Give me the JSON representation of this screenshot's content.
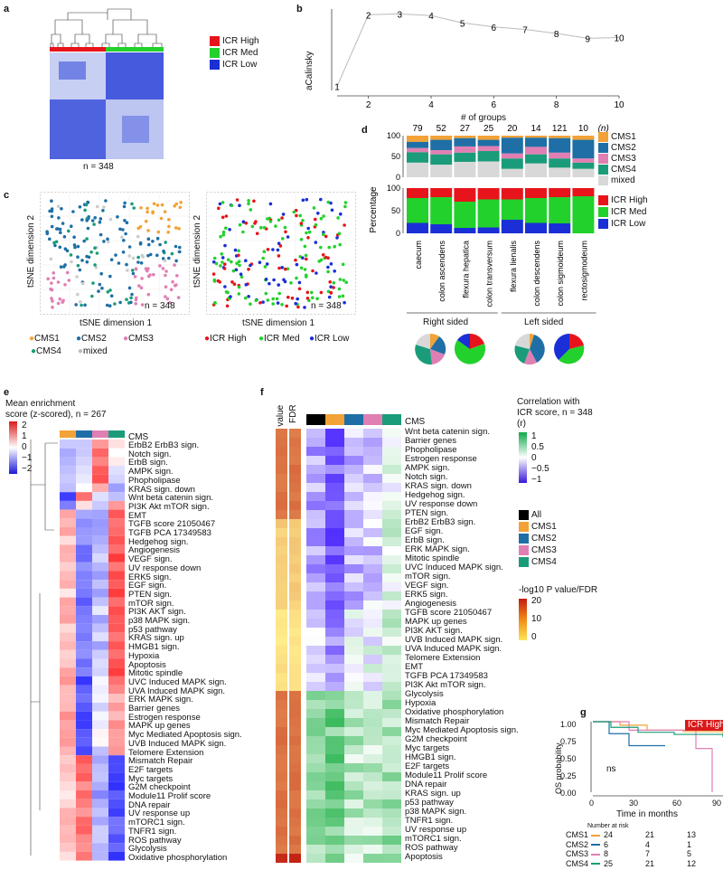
{
  "panels": {
    "a": "a",
    "b": "b",
    "c": "c",
    "d": "d",
    "e": "e",
    "f": "f",
    "g": "g"
  },
  "colors": {
    "icr_high": "#e8141b",
    "icr_med": "#22d12c",
    "icr_low": "#1a2fd6",
    "cms1": "#f2a236",
    "cms2": "#1f6fa6",
    "cms3": "#e07fb3",
    "cms4": "#1a9c7a",
    "mixed": "#d8d8d8"
  },
  "panel_a": {
    "legend": [
      "ICR High",
      "ICR Med",
      "ICR Low"
    ],
    "n_label": "n = 348"
  },
  "panel_b": {
    "chart_data": {
      "type": "line",
      "x": [
        1,
        2,
        3,
        4,
        5,
        6,
        7,
        8,
        9,
        10
      ],
      "y": [
        0.05,
        0.93,
        0.94,
        0.92,
        0.83,
        0.78,
        0.75,
        0.7,
        0.64,
        0.65
      ],
      "point_labels": [
        "1",
        "2",
        "3",
        "4",
        "5",
        "6",
        "7",
        "8",
        "9",
        "10"
      ],
      "xlabel": "# of groups",
      "ylabel": "aCalinsky",
      "xticks": [
        "2",
        "4",
        "6",
        "8",
        "10"
      ],
      "xlim": [
        1,
        10
      ]
    }
  },
  "panel_c": {
    "xlabel": "tSNE dimension 1",
    "ylabel": "tSNE dimension 2",
    "n_label_left": "n = 348",
    "n_label_right": "n = 348",
    "legend_left": [
      "CMS1",
      "CMS2",
      "CMS3",
      "CMS4",
      "mixed"
    ],
    "legend_right": [
      "ICR High",
      "ICR Med",
      "ICR Low"
    ]
  },
  "panel_d": {
    "chart_data": {
      "type": "bar",
      "categories": [
        "caecum",
        "colon ascendens",
        "flexura hepatica",
        "colon transversum",
        "flexura lienalis",
        "colon descendens",
        "colon sigmoideum",
        "rectosigmodeum"
      ],
      "n_values": [
        "79",
        "52",
        "27",
        "25",
        "20",
        "14",
        "121",
        "10"
      ],
      "n_suffix": "(n)",
      "ylabel": "Percentage",
      "yticks": [
        "100",
        "50",
        "0"
      ],
      "cms_series": [
        {
          "name": "CMS1",
          "values": [
            15,
            10,
            6,
            10,
            5,
            5,
            6,
            10
          ]
        },
        {
          "name": "CMS2",
          "values": [
            15,
            25,
            20,
            15,
            38,
            22,
            35,
            45
          ]
        },
        {
          "name": "CMS3",
          "values": [
            10,
            10,
            15,
            12,
            12,
            18,
            14,
            10
          ]
        },
        {
          "name": "CMS4",
          "values": [
            25,
            25,
            22,
            25,
            25,
            22,
            22,
            15
          ]
        },
        {
          "name": "mixed",
          "values": [
            35,
            30,
            37,
            38,
            20,
            33,
            23,
            20
          ]
        }
      ],
      "icr_series": [
        {
          "name": "ICR High",
          "values": [
            22,
            20,
            30,
            25,
            25,
            22,
            20,
            18
          ]
        },
        {
          "name": "ICR Med",
          "values": [
            55,
            60,
            58,
            62,
            45,
            55,
            58,
            82
          ]
        },
        {
          "name": "ICR Low",
          "values": [
            23,
            20,
            12,
            13,
            30,
            23,
            22,
            0
          ]
        }
      ],
      "cms_legend": [
        "CMS1",
        "CMS2",
        "CMS3",
        "CMS4",
        "mixed"
      ],
      "icr_legend": [
        "ICR High",
        "ICR Med",
        "ICR Low"
      ],
      "side_labels": [
        "Right sided",
        "Left sided"
      ]
    }
  },
  "panel_e": {
    "title": "Mean enrichment",
    "subtitle": "score (z-scored), n = 267",
    "scale_ticks": [
      "2",
      "1",
      "0",
      "−1",
      "−2"
    ],
    "header_label": "CMS",
    "rows": [
      "ErbB2 ErbB3 sign.",
      "Notch sign.",
      "ErbB sign.",
      "AMPK sign.",
      "Phopholipase",
      "KRAS sign. down",
      "Wnt beta catenin sign.",
      "PI3K Akt mTOR sign.",
      "EMT",
      "TGFB score 21050467",
      "TGFB PCA 17349583",
      "Hedgehog sign.",
      "Angiogenesis",
      "VEGF sign.",
      "UV response down",
      "ERK5 sign.",
      "EGF sign.",
      "PTEN sign.",
      "mTOR sign.",
      "PI3K AKT sign.",
      "p38 MAPK sign.",
      "p53 pathway",
      "KRAS sign. up",
      "HMGB1 sign.",
      "Hypoxia",
      "Apoptosis",
      "Mitotic spindle",
      "UVC Induced MAPK sign.",
      "UVA Induced MAPK sign.",
      "ERK MAPK sign.",
      "Barrier genes",
      "Estrogen response",
      "MAPK up genes",
      "Myc Mediated Apoptosis sign.",
      "UVB Induced MAPK sign.",
      "Telomere Extension",
      "Mismatch Repair",
      "E2F targets",
      "Myc targets",
      "G2M checkpoint",
      "Module11 Prolif score",
      "DNA repair",
      "UV response up",
      "mTORC1 sign.",
      "TNFR1 sign.",
      "ROS pathway",
      "Glycolysis",
      "Oxidative phosphorylation"
    ]
  },
  "panel_f": {
    "col_labels": [
      "p value",
      "FDR"
    ],
    "header_label": "CMS",
    "corr_title": "Correlation with",
    "corr_subtitle": "ICR score, n = 348",
    "corr_r": "(r)",
    "corr_ticks": [
      "1",
      "0.5",
      "0",
      "−0.5",
      "−1"
    ],
    "groups": [
      "All",
      "CMS1",
      "CMS2",
      "CMS3",
      "CMS4"
    ],
    "p_title": "-log10 P value/FDR",
    "p_ticks": [
      "20",
      "10",
      "0"
    ],
    "rows": [
      "Wnt beta catenin sign.",
      "Barrier genes",
      "Phopholipase",
      "Estrogen response",
      "AMPK sign.",
      "Notch sign.",
      "KRAS sign. down",
      "Hedgehog sign.",
      "UV response down",
      "PTEN sign.",
      "ErbB2 ErbB3 sign.",
      "EGF sign.",
      "ErbB sign.",
      "ERK MAPK sign.",
      "Mitotic spindle",
      "UVC Induced MAPK sign.",
      "mTOR sign.",
      "VEGF sign.",
      "ERK5 sign.",
      "Angiogenesis",
      "TGFB score 21050467",
      "MAPK up genes",
      "PI3K AKT sign.",
      "UVB Induced MAPK sign.",
      "UVA Induced MAPK sign.",
      "Telomere Extension",
      "EMT",
      "TGFB PCA 17349583",
      "PI3K Akt mTOR sign.",
      "Glycolysis",
      "Hypoxia",
      "Oxidative phosphorylation",
      "Mismatch Repair",
      "Myc Mediated Apoptosis sign.",
      "G2M checkpoint",
      "Myc targets",
      "HMGB1 sign.",
      "E2F targets",
      "Module11 Prolif score",
      "DNA repair",
      "KRAS sign. up",
      "p53 pathway",
      "p38 MAPK sign.",
      "TNFR1 sign.",
      "UV response up",
      "mTORC1 sign.",
      "ROS pathway",
      "Apoptosis"
    ]
  },
  "panel_g": {
    "ylabel": "OS probability",
    "xlabel": "Time in months",
    "yticks": [
      "1.00",
      "0.75",
      "0.50",
      "0.25",
      "0.00"
    ],
    "xticks": [
      "0",
      "30",
      "60",
      "90"
    ],
    "badge": "ICR High",
    "ns": "ns",
    "risk_title": "Number at risk",
    "risk": [
      {
        "name": "CMS1",
        "values": [
          "24",
          "21",
          "13",
          "11"
        ]
      },
      {
        "name": "CMS2",
        "values": [
          "6",
          "4",
          "1",
          "0"
        ]
      },
      {
        "name": "CMS3",
        "values": [
          "8",
          "7",
          "5",
          "0"
        ]
      },
      {
        "name": "CMS4",
        "values": [
          "25",
          "21",
          "12",
          "7"
        ]
      }
    ]
  }
}
